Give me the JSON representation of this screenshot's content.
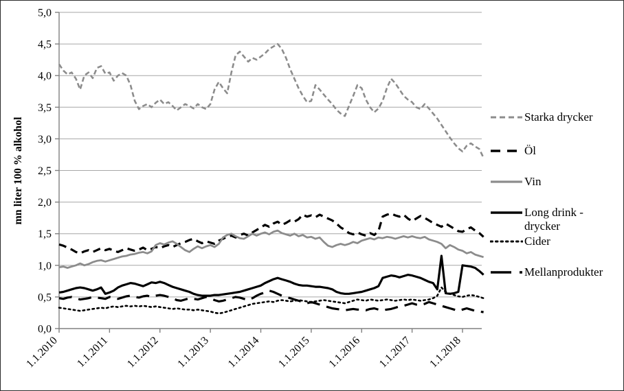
{
  "figure": {
    "background": "#ffffff",
    "border_color": "#2b2b2b"
  },
  "chart_data": {
    "type": "line",
    "title": "",
    "xlabel": "",
    "ylabel": "mn liter 100 % alkohol",
    "ylim": [
      0,
      5
    ],
    "ytick_interval": 0.5,
    "ytick_labels": [
      "0,0",
      "0,5",
      "1,0",
      "1,5",
      "2,0",
      "2,5",
      "3,0",
      "3,5",
      "4,0",
      "4,5",
      "5,0"
    ],
    "xtick_labels": [
      "1.1.2010",
      "1.1.2011",
      "1.1.2012",
      "1.1.2013",
      "1.1.2014",
      "1.1.2015",
      "1.1.2016",
      "1.1.2017",
      "1.1.2018"
    ],
    "x_frequency": "monthly",
    "x_range": "Jan 2010 - Jun 2018",
    "grid": "horizontal",
    "legend_position": "right",
    "axis_color": "#808080",
    "grid_color": "#a6a6a6",
    "series": [
      {
        "name": "Starka drycker",
        "color": "#8c8c8c",
        "style": "dashed",
        "width": 2.6,
        "values": [
          4.18,
          4.08,
          4.02,
          4.05,
          3.95,
          3.78,
          4.0,
          4.05,
          3.96,
          4.12,
          4.15,
          4.03,
          4.05,
          3.92,
          4.0,
          4.04,
          4.0,
          3.85,
          3.6,
          3.47,
          3.52,
          3.55,
          3.5,
          3.57,
          3.62,
          3.55,
          3.58,
          3.52,
          3.45,
          3.5,
          3.55,
          3.52,
          3.48,
          3.55,
          3.5,
          3.47,
          3.55,
          3.78,
          3.9,
          3.8,
          3.72,
          4.05,
          4.32,
          4.38,
          4.3,
          4.22,
          4.28,
          4.25,
          4.3,
          4.35,
          4.42,
          4.46,
          4.5,
          4.42,
          4.28,
          4.1,
          3.95,
          3.8,
          3.68,
          3.58,
          3.6,
          3.85,
          3.78,
          3.7,
          3.62,
          3.55,
          3.46,
          3.4,
          3.36,
          3.52,
          3.68,
          3.85,
          3.8,
          3.62,
          3.5,
          3.42,
          3.48,
          3.6,
          3.8,
          3.95,
          3.88,
          3.78,
          3.68,
          3.62,
          3.58,
          3.5,
          3.47,
          3.55,
          3.48,
          3.4,
          3.32,
          3.22,
          3.12,
          3.02,
          2.93,
          2.85,
          2.8,
          2.89,
          2.93,
          2.88,
          2.84,
          2.7
        ]
      },
      {
        "name": "Öl",
        "color": "#000000",
        "style": "dashed-long",
        "width": 3.2,
        "values": [
          1.33,
          1.31,
          1.28,
          1.25,
          1.21,
          1.19,
          1.22,
          1.24,
          1.21,
          1.24,
          1.27,
          1.24,
          1.26,
          1.23,
          1.21,
          1.24,
          1.27,
          1.25,
          1.23,
          1.25,
          1.28,
          1.24,
          1.26,
          1.29,
          1.27,
          1.3,
          1.32,
          1.29,
          1.32,
          1.35,
          1.37,
          1.4,
          1.42,
          1.38,
          1.35,
          1.38,
          1.36,
          1.34,
          1.39,
          1.42,
          1.45,
          1.47,
          1.44,
          1.48,
          1.5,
          1.47,
          1.52,
          1.56,
          1.6,
          1.64,
          1.61,
          1.66,
          1.69,
          1.64,
          1.67,
          1.71,
          1.69,
          1.73,
          1.8,
          1.77,
          1.79,
          1.76,
          1.8,
          1.77,
          1.74,
          1.71,
          1.66,
          1.6,
          1.56,
          1.51,
          1.49,
          1.52,
          1.49,
          1.47,
          1.51,
          1.48,
          1.54,
          1.77,
          1.8,
          1.82,
          1.79,
          1.77,
          1.8,
          1.74,
          1.7,
          1.74,
          1.78,
          1.75,
          1.71,
          1.67,
          1.64,
          1.61,
          1.66,
          1.62,
          1.58,
          1.54,
          1.53,
          1.57,
          1.6,
          1.55,
          1.51,
          1.45
        ]
      },
      {
        "name": "Vin",
        "color": "#8c8c8c",
        "style": "solid",
        "width": 2.8,
        "values": [
          0.97,
          0.98,
          0.96,
          0.98,
          1.0,
          1.03,
          1.0,
          1.02,
          1.05,
          1.07,
          1.08,
          1.06,
          1.08,
          1.1,
          1.12,
          1.14,
          1.15,
          1.17,
          1.18,
          1.2,
          1.21,
          1.19,
          1.22,
          1.32,
          1.35,
          1.33,
          1.36,
          1.38,
          1.34,
          1.29,
          1.24,
          1.21,
          1.26,
          1.3,
          1.27,
          1.3,
          1.32,
          1.29,
          1.34,
          1.44,
          1.48,
          1.5,
          1.46,
          1.43,
          1.42,
          1.46,
          1.5,
          1.47,
          1.5,
          1.52,
          1.49,
          1.53,
          1.55,
          1.51,
          1.49,
          1.47,
          1.5,
          1.46,
          1.48,
          1.44,
          1.45,
          1.42,
          1.44,
          1.37,
          1.31,
          1.29,
          1.32,
          1.34,
          1.32,
          1.34,
          1.37,
          1.35,
          1.39,
          1.41,
          1.43,
          1.41,
          1.44,
          1.43,
          1.45,
          1.44,
          1.42,
          1.44,
          1.46,
          1.44,
          1.46,
          1.44,
          1.43,
          1.45,
          1.41,
          1.39,
          1.37,
          1.34,
          1.27,
          1.32,
          1.29,
          1.25,
          1.23,
          1.19,
          1.21,
          1.17,
          1.15,
          1.13
        ]
      },
      {
        "name": "Long drink - drycker",
        "color": "#000000",
        "style": "solid",
        "width": 3.2,
        "values": [
          0.57,
          0.58,
          0.6,
          0.62,
          0.64,
          0.65,
          0.64,
          0.62,
          0.6,
          0.62,
          0.65,
          0.55,
          0.57,
          0.6,
          0.65,
          0.68,
          0.7,
          0.72,
          0.71,
          0.69,
          0.67,
          0.7,
          0.73,
          0.72,
          0.74,
          0.72,
          0.69,
          0.66,
          0.64,
          0.62,
          0.6,
          0.58,
          0.55,
          0.53,
          0.52,
          0.52,
          0.52,
          0.53,
          0.53,
          0.54,
          0.55,
          0.56,
          0.57,
          0.58,
          0.6,
          0.62,
          0.64,
          0.66,
          0.68,
          0.72,
          0.75,
          0.78,
          0.8,
          0.78,
          0.76,
          0.74,
          0.71,
          0.69,
          0.68,
          0.68,
          0.67,
          0.66,
          0.66,
          0.65,
          0.64,
          0.62,
          0.58,
          0.56,
          0.55,
          0.55,
          0.56,
          0.57,
          0.58,
          0.6,
          0.62,
          0.64,
          0.67,
          0.8,
          0.82,
          0.84,
          0.83,
          0.81,
          0.83,
          0.85,
          0.84,
          0.82,
          0.8,
          0.77,
          0.74,
          0.72,
          0.62,
          1.15,
          0.56,
          0.55,
          0.56,
          0.58,
          1.0,
          0.99,
          0.98,
          0.96,
          0.91,
          0.85
        ]
      },
      {
        "name": "Cider",
        "color": "#000000",
        "style": "dotted",
        "width": 2.6,
        "values": [
          0.33,
          0.32,
          0.31,
          0.3,
          0.29,
          0.28,
          0.29,
          0.3,
          0.31,
          0.32,
          0.33,
          0.32,
          0.34,
          0.35,
          0.34,
          0.35,
          0.36,
          0.35,
          0.36,
          0.35,
          0.36,
          0.35,
          0.34,
          0.35,
          0.34,
          0.33,
          0.32,
          0.31,
          0.32,
          0.31,
          0.3,
          0.3,
          0.29,
          0.3,
          0.29,
          0.28,
          0.27,
          0.25,
          0.24,
          0.25,
          0.27,
          0.29,
          0.31,
          0.33,
          0.35,
          0.37,
          0.39,
          0.4,
          0.41,
          0.42,
          0.43,
          0.42,
          0.44,
          0.45,
          0.44,
          0.43,
          0.44,
          0.45,
          0.44,
          0.43,
          0.42,
          0.43,
          0.44,
          0.45,
          0.44,
          0.43,
          0.42,
          0.41,
          0.4,
          0.42,
          0.44,
          0.46,
          0.45,
          0.44,
          0.46,
          0.45,
          0.44,
          0.45,
          0.46,
          0.45,
          0.44,
          0.45,
          0.46,
          0.45,
          0.46,
          0.45,
          0.44,
          0.45,
          0.46,
          0.48,
          0.52,
          0.65,
          0.58,
          0.55,
          0.53,
          0.51,
          0.5,
          0.52,
          0.53,
          0.52,
          0.5,
          0.48
        ]
      },
      {
        "name": "Mellanprodukter",
        "color": "#000000",
        "style": "long-dash",
        "width": 3.2,
        "values": [
          0.48,
          0.47,
          0.49,
          0.5,
          0.48,
          0.46,
          0.47,
          0.48,
          0.5,
          0.49,
          0.48,
          0.47,
          0.5,
          0.48,
          0.47,
          0.49,
          0.51,
          0.52,
          0.5,
          0.49,
          0.51,
          0.52,
          0.5,
          0.52,
          0.53,
          0.52,
          0.5,
          0.48,
          0.45,
          0.44,
          0.46,
          0.48,
          0.47,
          0.46,
          0.48,
          0.5,
          0.48,
          0.45,
          0.43,
          0.44,
          0.46,
          0.48,
          0.5,
          0.49,
          0.47,
          0.45,
          0.48,
          0.52,
          0.55,
          0.57,
          0.6,
          0.58,
          0.55,
          0.52,
          0.5,
          0.48,
          0.46,
          0.44,
          0.42,
          0.4,
          0.42,
          0.4,
          0.38,
          0.36,
          0.34,
          0.32,
          0.31,
          0.3,
          0.29,
          0.3,
          0.31,
          0.3,
          0.3,
          0.29,
          0.31,
          0.32,
          0.3,
          0.29,
          0.3,
          0.31,
          0.33,
          0.35,
          0.36,
          0.38,
          0.4,
          0.38,
          0.37,
          0.39,
          0.42,
          0.4,
          0.38,
          0.36,
          0.34,
          0.32,
          0.3,
          0.28,
          0.3,
          0.32,
          0.3,
          0.28,
          0.27,
          0.26
        ]
      }
    ]
  }
}
